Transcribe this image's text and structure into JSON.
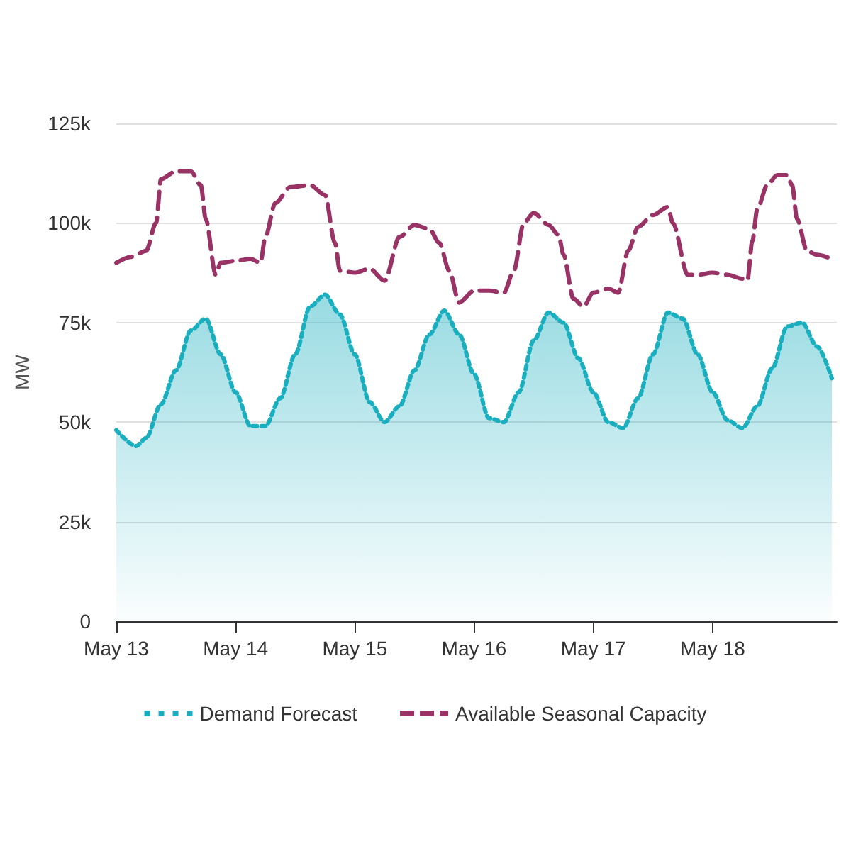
{
  "chart_data": {
    "type": "area",
    "ylabel": "MW",
    "xlim": [
      "--05-13T00:00",
      "--05-19T01:00"
    ],
    "xticks": [
      {
        "value": "--05-13",
        "label": "May 13"
      },
      {
        "value": "--05-14",
        "label": "May 14"
      },
      {
        "value": "--05-15",
        "label": "May 15"
      },
      {
        "value": "--05-16",
        "label": "May 16"
      },
      {
        "value": "--05-17",
        "label": "May 17"
      },
      {
        "value": "--05-18",
        "label": "May 18"
      }
    ],
    "ylim": [
      0,
      125000
    ],
    "yticks": [
      {
        "value": 0,
        "label": "0"
      },
      {
        "value": 25000,
        "label": "25k"
      },
      {
        "value": 50000,
        "label": "50k"
      },
      {
        "value": 75000,
        "label": "75k"
      },
      {
        "value": 100000,
        "label": "100k"
      },
      {
        "value": 125000,
        "label": "125k"
      }
    ],
    "grid": "y",
    "legend": "bottom",
    "marker": "none",
    "series": [
      {
        "name": "Demand Forecast",
        "color": "#1aafbf",
        "line_style": "dotted",
        "x": [
          "--05-13T00:00",
          "--05-13T04:00",
          "--05-13T06:00",
          "--05-13T09:00",
          "--05-13T12:00",
          "--05-13T15:00",
          "--05-13T18:00",
          "--05-13T21:00",
          "--05-14T00:00",
          "--05-14T03:00",
          "--05-14T06:00",
          "--05-14T09:00",
          "--05-14T12:00",
          "--05-14T15:00",
          "--05-14T18:00",
          "--05-14T21:00",
          "--05-15T00:00",
          "--05-15T03:00",
          "--05-15T06:00",
          "--05-15T09:00",
          "--05-15T12:00",
          "--05-15T15:00",
          "--05-15T18:00",
          "--05-15T21:00",
          "--05-16T00:00",
          "--05-16T03:00",
          "--05-16T06:00",
          "--05-16T09:00",
          "--05-16T12:00",
          "--05-16T15:00",
          "--05-16T18:00",
          "--05-16T21:00",
          "--05-17T00:00",
          "--05-17T03:00",
          "--05-17T06:00",
          "--05-17T09:00",
          "--05-17T12:00",
          "--05-17T15:00",
          "--05-17T18:00",
          "--05-17T21:00",
          "--05-18T00:00",
          "--05-18T03:00",
          "--05-18T06:00",
          "--05-18T09:00",
          "--05-18T12:00",
          "--05-18T15:00",
          "--05-18T18:00",
          "--05-18T21:00",
          "--05-19T00:00"
        ],
        "values": [
          48000,
          44000,
          46000,
          54500,
          63000,
          73000,
          76000,
          67000,
          57500,
          49000,
          49000,
          56000,
          67000,
          79000,
          82000,
          77000,
          67000,
          55000,
          50000,
          54000,
          63000,
          72000,
          78000,
          72000,
          62000,
          51000,
          50000,
          57500,
          70500,
          77500,
          75000,
          66000,
          57500,
          50000,
          48500,
          56000,
          67000,
          77500,
          76000,
          67000,
          57500,
          50500,
          48500,
          54000,
          63500,
          74000,
          75000,
          69000,
          61000
        ]
      },
      {
        "name": "Available Seasonal Capacity",
        "type": "line",
        "color": "#993366",
        "line_style": "dashed",
        "x": [
          "--05-13T00:00",
          "--05-13T03:00",
          "--05-13T06:00",
          "--05-13T08:00",
          "--05-13T09:00",
          "--05-13T12:00",
          "--05-13T15:00",
          "--05-13T17:00",
          "--05-13T18:00",
          "--05-13T20:00",
          "--05-13T21:00",
          "--05-14T00:00",
          "--05-14T03:00",
          "--05-14T05:00",
          "--05-14T06:00",
          "--05-14T08:00",
          "--05-14T11:00",
          "--05-14T15:00",
          "--05-14T18:00",
          "--05-14T20:00",
          "--05-14T21:00",
          "--05-15T00:00",
          "--05-15T03:00",
          "--05-15T06:00",
          "--05-15T09:00",
          "--05-15T12:00",
          "--05-15T15:00",
          "--05-15T17:00",
          "--05-15T19:00",
          "--05-15T21:00",
          "--05-16T00:00",
          "--05-16T03:00",
          "--05-16T06:00",
          "--05-16T08:00",
          "--05-16T10:00",
          "--05-16T12:00",
          "--05-16T15:00",
          "--05-16T17:00",
          "--05-16T18:00",
          "--05-16T20:00",
          "--05-16T22:00",
          "--05-17T00:00",
          "--05-17T03:00",
          "--05-17T05:00",
          "--05-17T07:00",
          "--05-17T09:00",
          "--05-17T12:00",
          "--05-17T15:00",
          "--05-17T16:00",
          "--05-17T19:00",
          "--05-17T21:00",
          "--05-18T00:00",
          "--05-18T03:00",
          "--05-18T06:00",
          "--05-18T07:00",
          "--05-18T08:00",
          "--05-18T09:00",
          "--05-18T11:00",
          "--05-18T13:00",
          "--05-18T15:00",
          "--05-18T16:00",
          "--05-18T17:00",
          "--05-18T19:00",
          "--05-18T21:00",
          "--05-19T00:00"
        ],
        "values": [
          90000,
          91500,
          93000,
          100000,
          111000,
          113000,
          113000,
          109500,
          101000,
          87000,
          90000,
          90500,
          91000,
          90000,
          96500,
          105000,
          109000,
          109500,
          107000,
          95000,
          88000,
          87500,
          88500,
          85500,
          96500,
          99500,
          98500,
          95000,
          88000,
          80000,
          83000,
          83000,
          82500,
          88000,
          100000,
          102500,
          99500,
          97000,
          92000,
          81000,
          79000,
          82500,
          83500,
          82500,
          93000,
          99000,
          102000,
          104000,
          100000,
          87000,
          87000,
          87500,
          87000,
          86000,
          85500,
          95500,
          103500,
          109500,
          112000,
          112000,
          109500,
          101000,
          93000,
          92000,
          91000
        ]
      }
    ]
  }
}
